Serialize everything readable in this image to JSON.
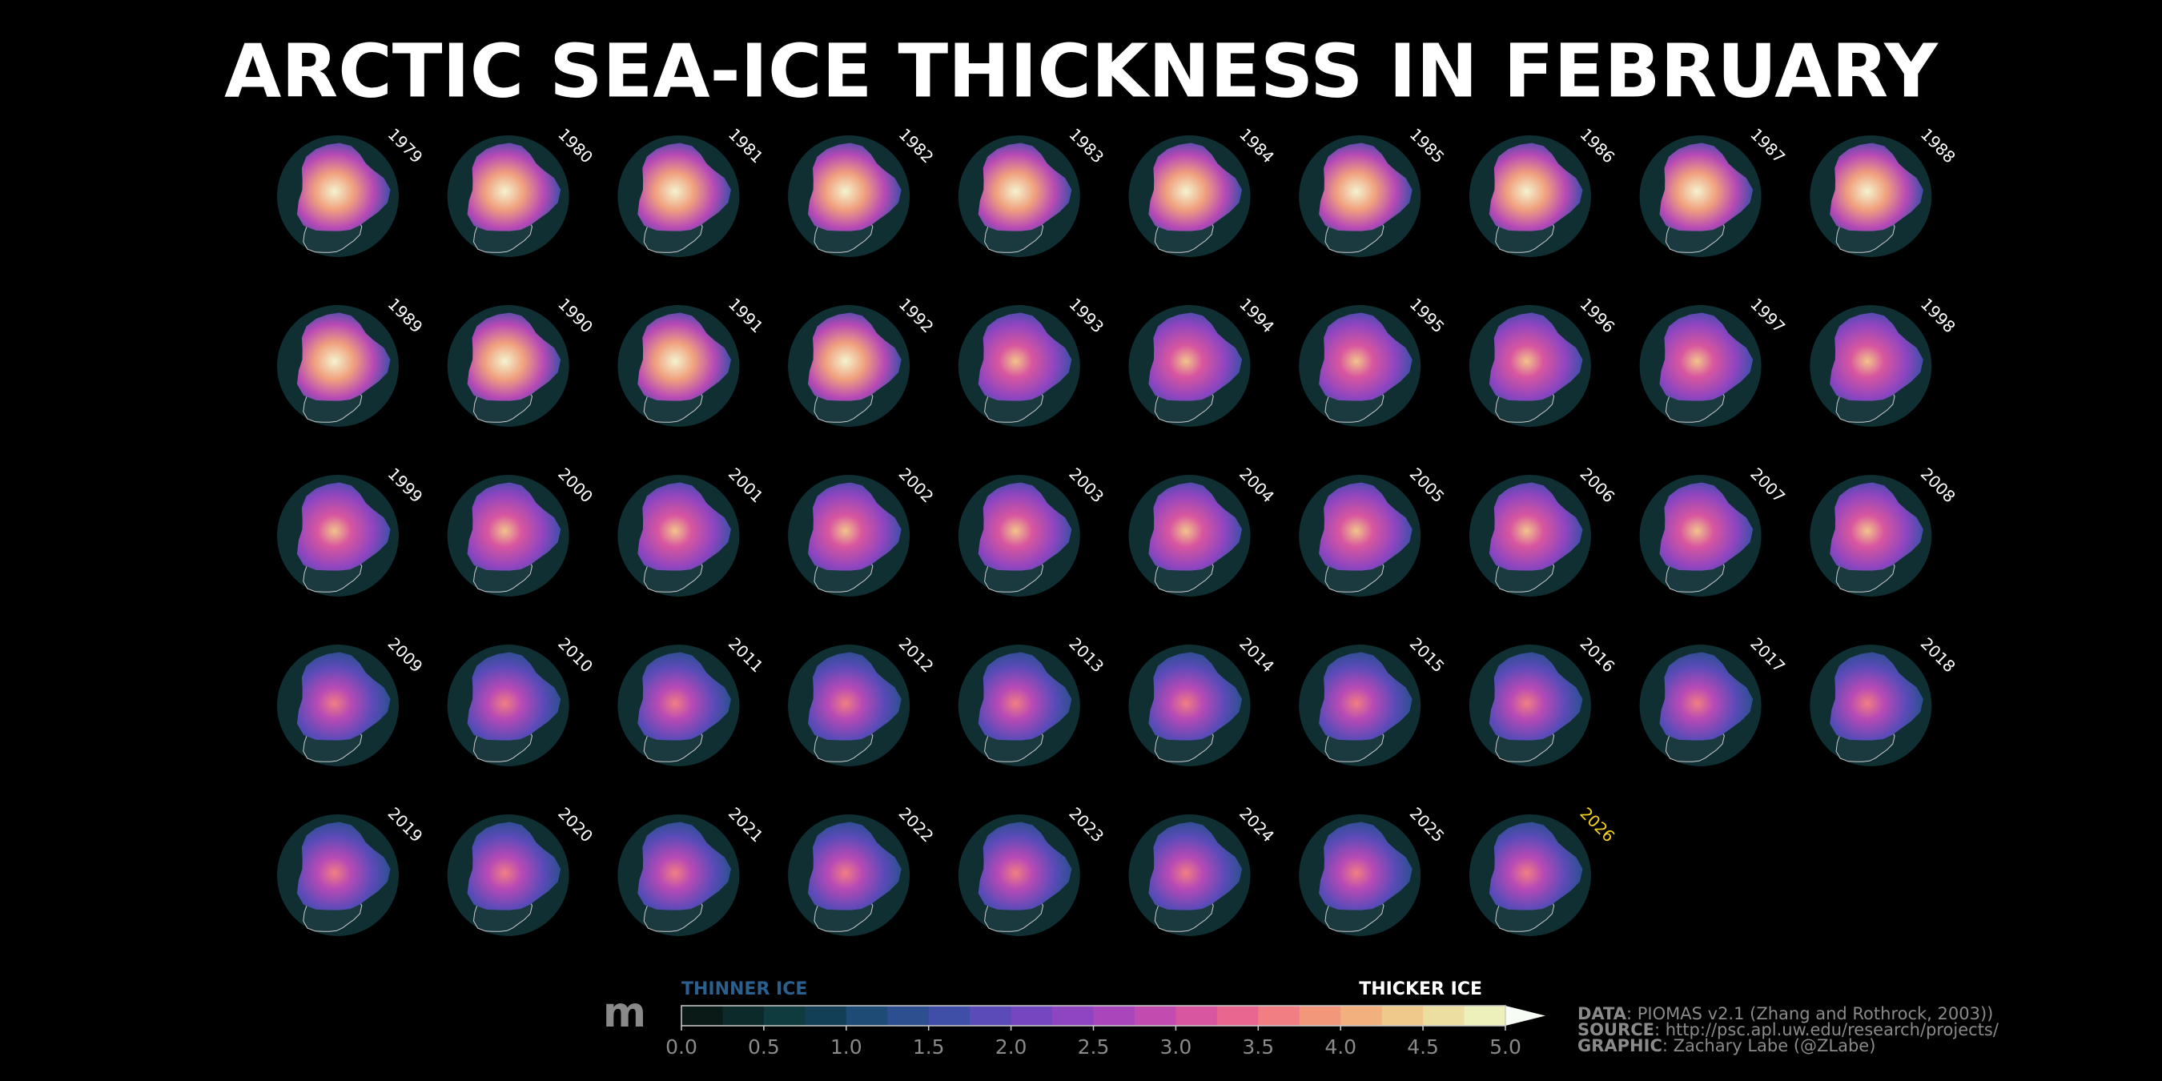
{
  "chart_data": {
    "type": "map-grid",
    "title": "ARCTIC SEA-ICE THICKNESS IN FEBRUARY",
    "years": [
      "1979",
      "1980",
      "1981",
      "1982",
      "1983",
      "1984",
      "1985",
      "1986",
      "1987",
      "1988",
      "1989",
      "1990",
      "1991",
      "1992",
      "1993",
      "1994",
      "1995",
      "1996",
      "1997",
      "1998",
      "1999",
      "2000",
      "2001",
      "2002",
      "2003",
      "2004",
      "2005",
      "2006",
      "2007",
      "2008",
      "2009",
      "2010",
      "2011",
      "2012",
      "2013",
      "2014",
      "2015",
      "2016",
      "2017",
      "2018",
      "2019",
      "2020",
      "2021",
      "2022",
      "2023",
      "2024",
      "2025",
      "2026"
    ],
    "highlight_color": "#f5d21e",
    "colorbar": {
      "unit": "m",
      "low_label": "THINNER ICE",
      "high_label": "THICKER ICE",
      "xlim": [
        0,
        5
      ],
      "xticks": [
        {
          "value": 0,
          "label": "0.0"
        },
        {
          "value": 0.5,
          "label": "0.5"
        },
        {
          "value": 1,
          "label": "1.0"
        },
        {
          "value": 1.5,
          "label": "1.5"
        },
        {
          "value": 2,
          "label": "2.0"
        },
        {
          "value": 2.5,
          "label": "2.5"
        },
        {
          "value": 3,
          "label": "3.0"
        },
        {
          "value": 3.5,
          "label": "3.5"
        },
        {
          "value": 4,
          "label": "4.0"
        },
        {
          "value": 4.5,
          "label": "4.5"
        },
        {
          "value": 5,
          "label": "5.0"
        }
      ],
      "colors": [
        "#0a1a17",
        "#0d2a2a",
        "#0f3a3e",
        "#123f55",
        "#1e4b75",
        "#2d4f90",
        "#3f4fa8",
        "#5a4bb8",
        "#7447c0",
        "#8f45c0",
        "#a946bc",
        "#c24bb0",
        "#d8569f",
        "#e8668f",
        "#f07e82",
        "#f3977b",
        "#f2b07e",
        "#eec98b",
        "#ecdea0",
        "#eef0bc"
      ],
      "over_color": "#f7fcf5"
    },
    "credits": [
      {
        "label": "DATA",
        "text": ": PIOMAS v2.1 (Zhang and Rothrock, 2003))"
      },
      {
        "label": "SOURCE",
        "text": ": http://psc.apl.uw.edu/research/projects/"
      },
      {
        "label": "GRAPHIC",
        "text": ": Zachary Labe (@ZLabe)"
      }
    ]
  }
}
